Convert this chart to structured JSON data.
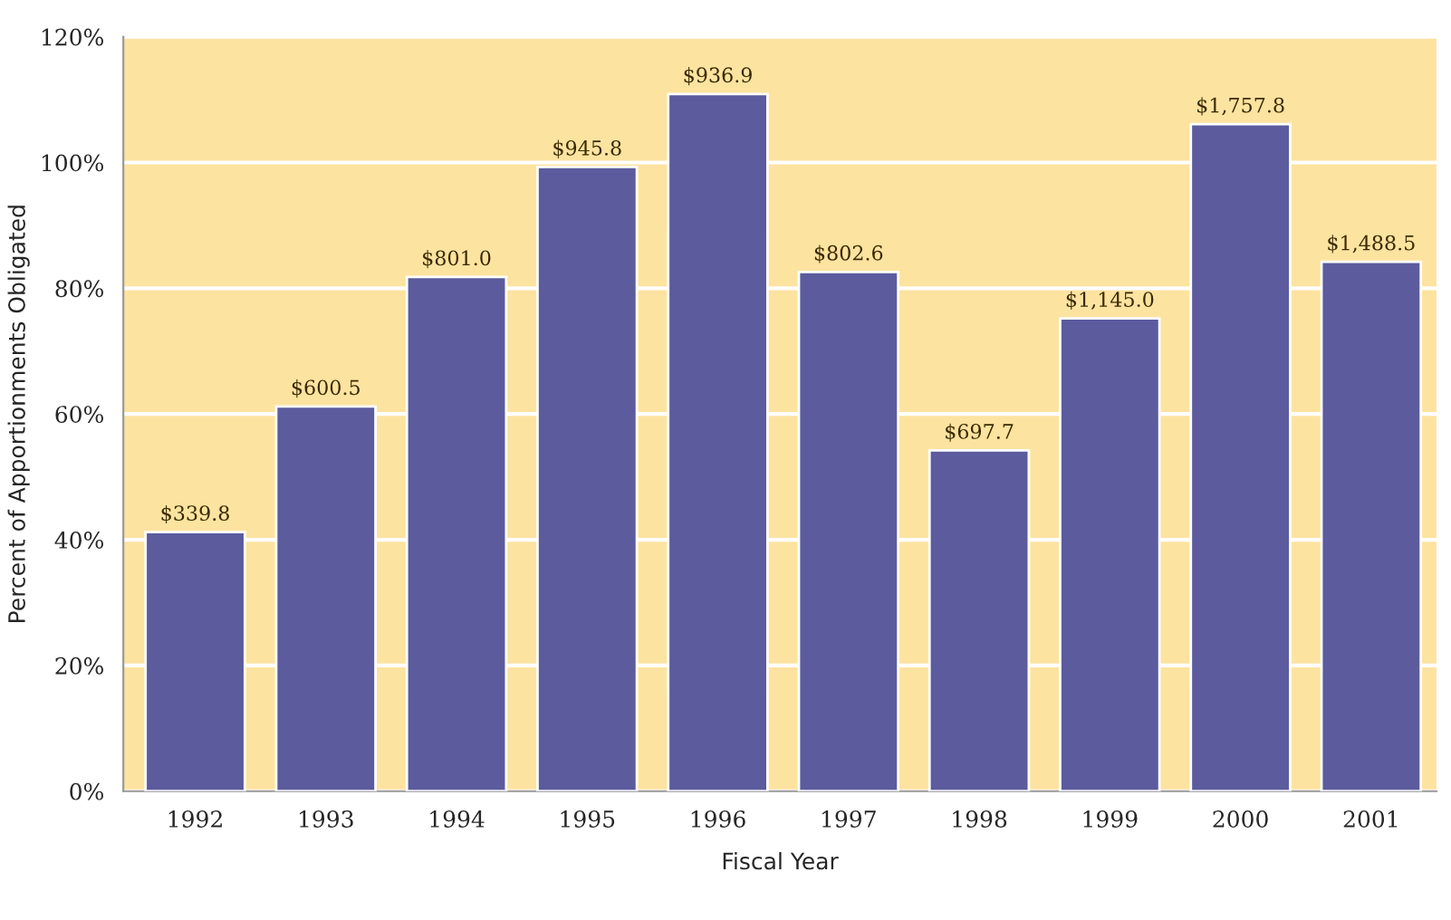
{
  "chart_data": {
    "type": "bar",
    "xlabel": "Fiscal Year",
    "ylabel": "Percent of Apportionments Obligated",
    "categories": [
      "1992",
      "1993",
      "1994",
      "1995",
      "1996",
      "1997",
      "1998",
      "1999",
      "2000",
      "2001"
    ],
    "series": [
      {
        "color": "#5b5b9e",
        "values": [
          41.2,
          61.2,
          81.8,
          99.3,
          110.9,
          82.6,
          54.2,
          75.2,
          106.1,
          84.2
        ]
      }
    ],
    "annotations": [
      {
        "text": "$339.8",
        "x": "1992",
        "y": 41.2
      },
      {
        "text": "$600.5",
        "x": "1993",
        "y": 61.2
      },
      {
        "text": "$801.0",
        "x": "1994",
        "y": 81.8
      },
      {
        "text": "$945.8",
        "x": "1995",
        "y": 99.3
      },
      {
        "text": "$936.9",
        "x": "1996",
        "y": 110.9
      },
      {
        "text": "$802.6",
        "x": "1997",
        "y": 82.6
      },
      {
        "text": "$697.7",
        "x": "1998",
        "y": 54.2
      },
      {
        "text": "$1,145.0",
        "x": "1999",
        "y": 75.2
      },
      {
        "text": "$1,757.8",
        "x": "2000",
        "y": 106.1
      },
      {
        "text": "$1,488.5",
        "x": "2001",
        "y": 84.2
      }
    ],
    "ylim": [
      0,
      120
    ],
    "yticks": [
      {
        "value": 0,
        "label": "0%"
      },
      {
        "value": 20,
        "label": "20%"
      },
      {
        "value": 40,
        "label": "40%"
      },
      {
        "value": 60,
        "label": "60%"
      },
      {
        "value": 80,
        "label": "80%"
      },
      {
        "value": 100,
        "label": "100%"
      },
      {
        "value": 120,
        "label": "120%"
      }
    ],
    "bands": [
      {
        "axis": "y",
        "from": 0,
        "to": 120,
        "color": "#fde3a0"
      }
    ],
    "grid": "y",
    "legend": false
  }
}
